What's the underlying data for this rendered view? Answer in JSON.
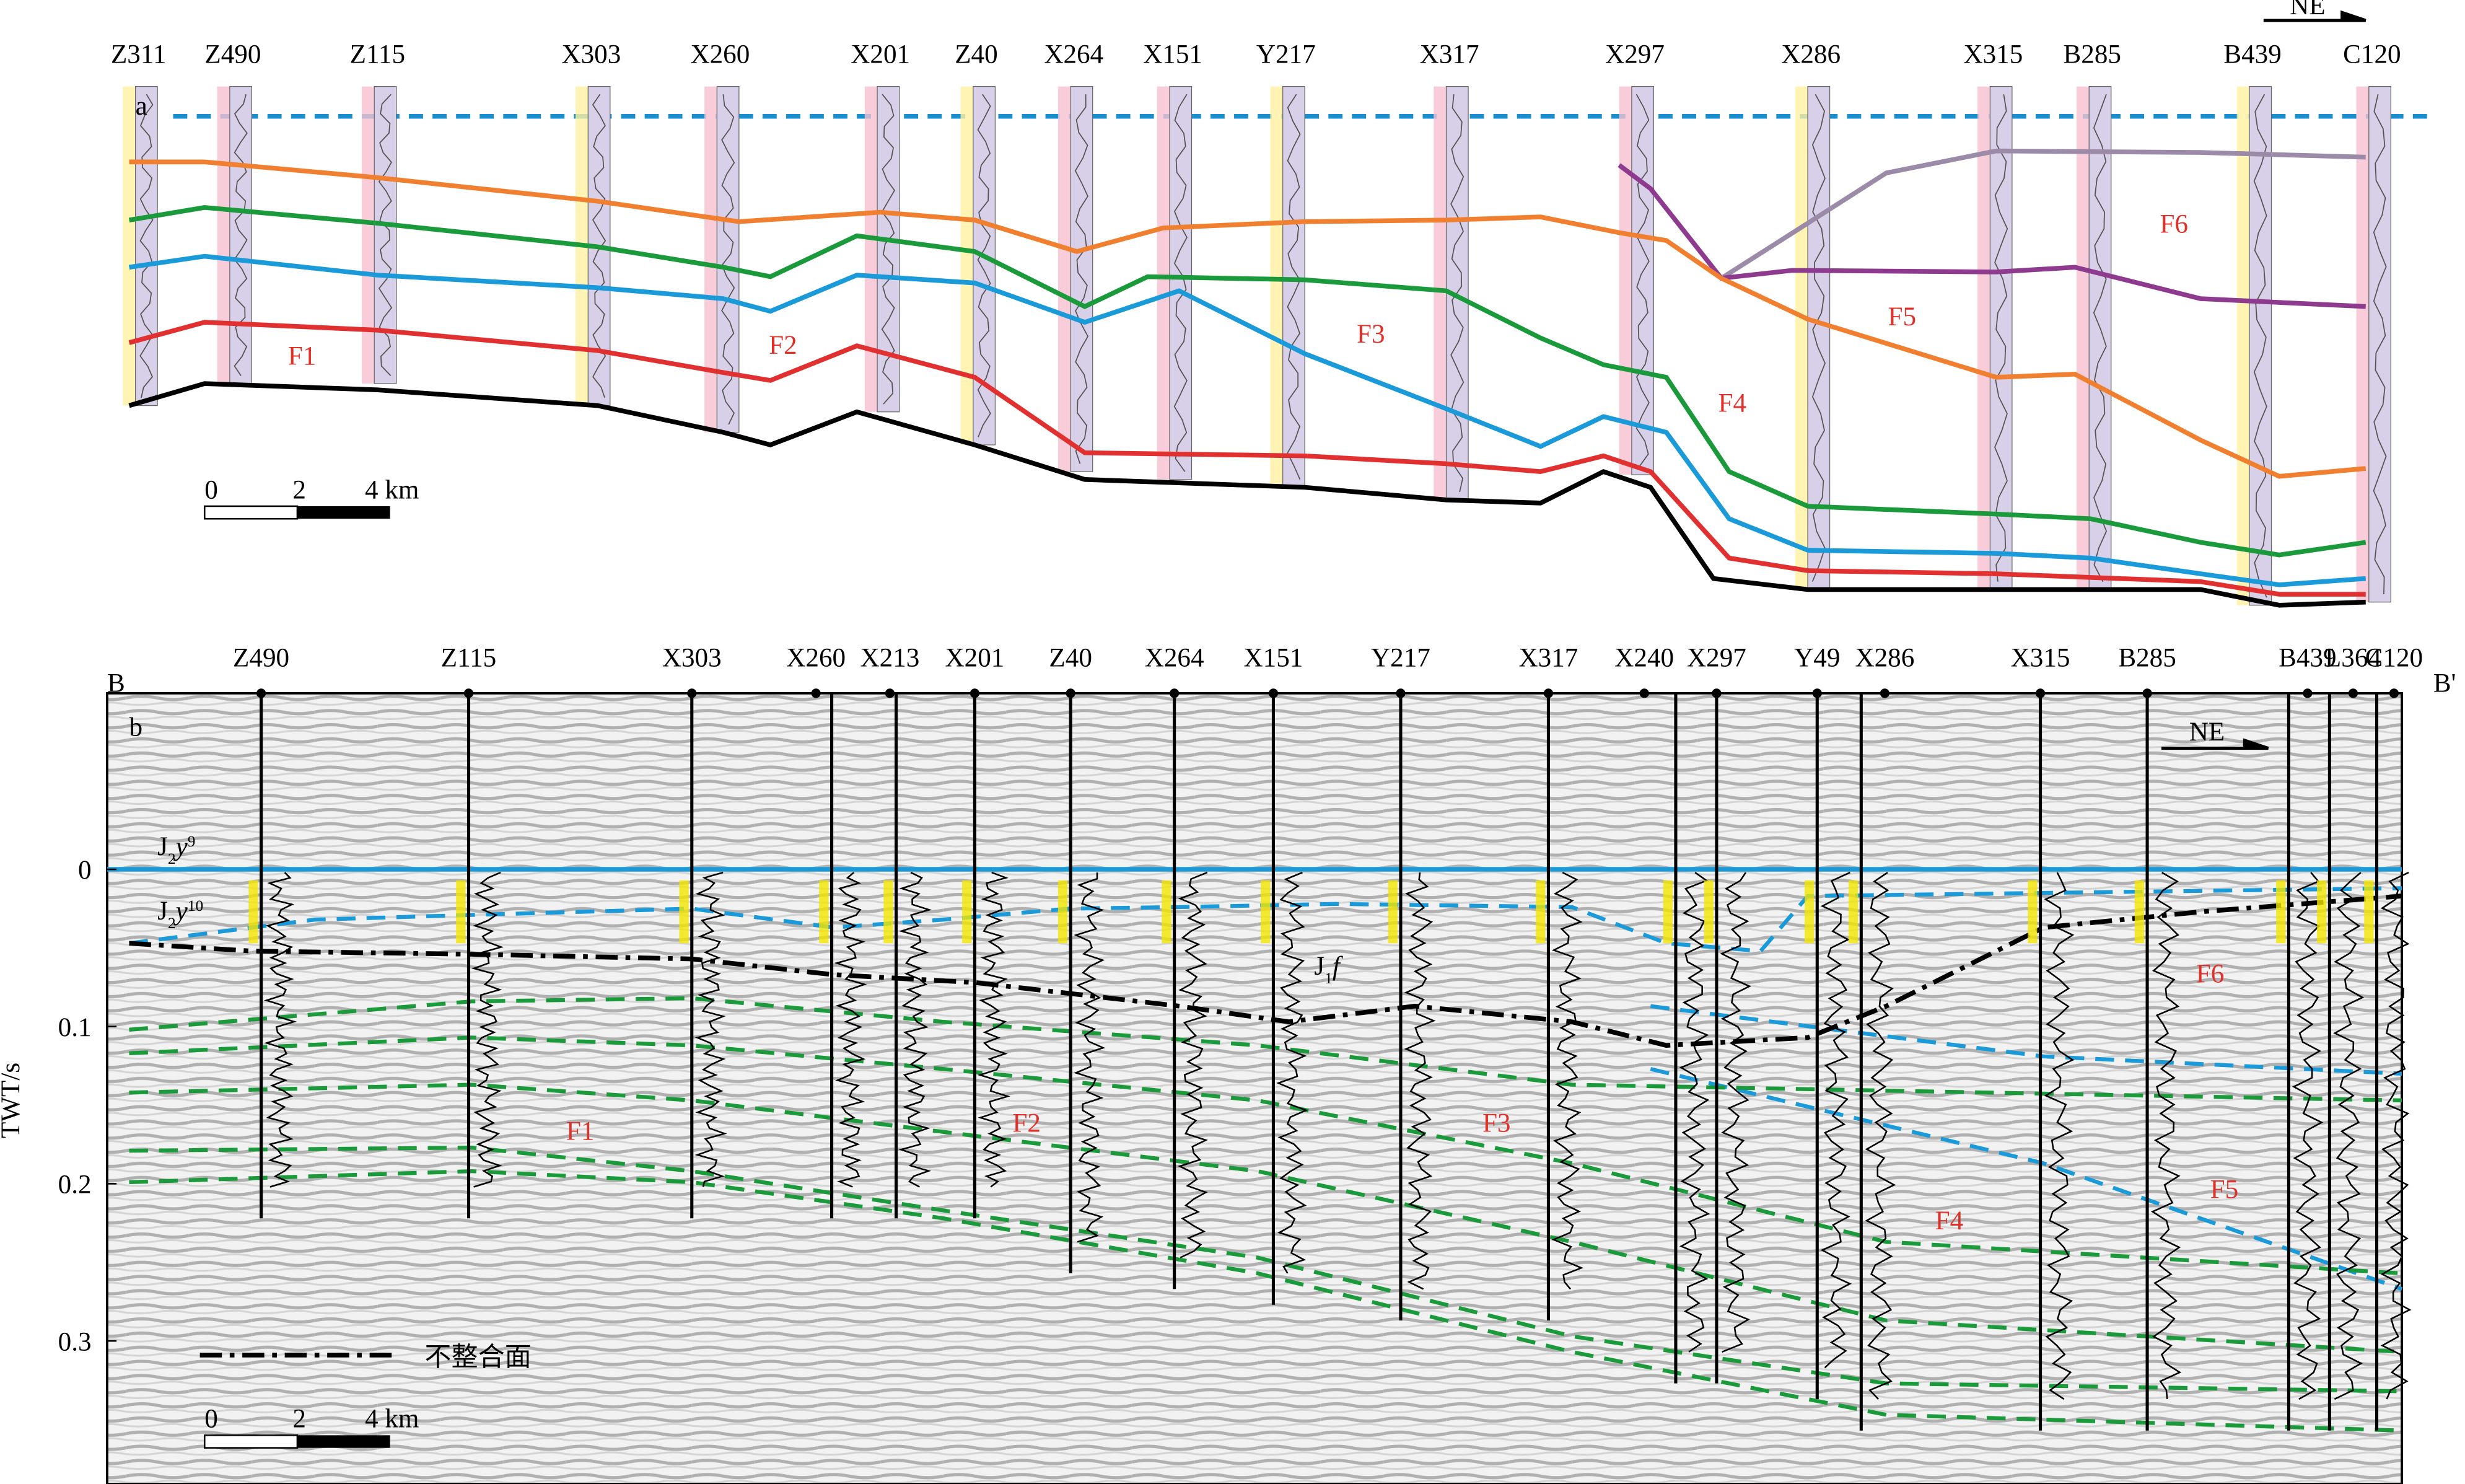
{
  "panel_a": {
    "label": "a",
    "direction": "NE",
    "wells": [
      "Z311",
      "Z490",
      "Z115",
      "X303",
      "X260",
      "X201",
      "Z40",
      "X264",
      "X151",
      "Y217",
      "X317",
      "X297",
      "X286",
      "X315",
      "B285",
      "B439",
      "C120"
    ],
    "blocks": [
      "F1",
      "F2",
      "F3",
      "F4",
      "F5",
      "F6"
    ],
    "scale": [
      "0",
      "2",
      "4 km"
    ]
  },
  "panel_b": {
    "label": "b",
    "start": "B",
    "end": "B'",
    "direction": "NE",
    "wells": [
      "Z490",
      "Z115",
      "X303",
      "X260",
      "X213",
      "X201",
      "Z40",
      "X264",
      "X151",
      "Y217",
      "X317",
      "X240",
      "X297",
      "Y49",
      "X286",
      "X315",
      "B285",
      "B439",
      "L364",
      "C120"
    ],
    "y_axis": {
      "title": "TWT/s",
      "ylim": [
        -0.112,
        0.391
      ],
      "yticks": [
        0,
        0.1,
        0.2,
        0.3
      ]
    },
    "horizons": [
      {
        "letter": "J",
        "sub": "2",
        "var": "y",
        "sup": "9"
      },
      {
        "letter": "J",
        "sub": "2",
        "var": "y",
        "sup": "10"
      }
    ],
    "formation": {
      "letter": "J",
      "sub": "1",
      "var": "f"
    },
    "blocks": [
      "F1",
      "F2",
      "F3",
      "F4",
      "F5",
      "F6"
    ],
    "legend": "不整合面",
    "scale": [
      "0",
      "2",
      "4 km"
    ]
  }
}
